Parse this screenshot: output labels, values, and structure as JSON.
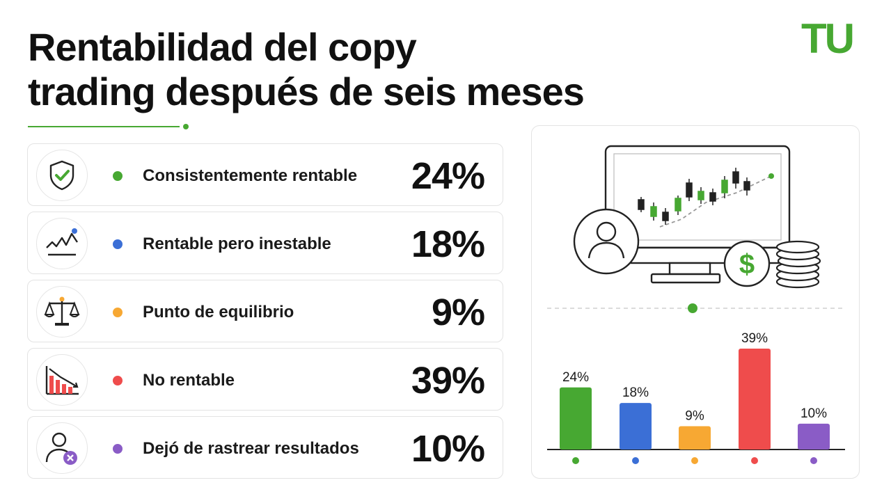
{
  "header": {
    "title_line1": "Rentabilidad del copy",
    "title_line2": "trading después de seis meses",
    "logo_text": "TU",
    "accent_color": "#47a832"
  },
  "rows": [
    {
      "label": "Consistentemente rentable",
      "value": "24%",
      "color": "#47a832",
      "icon": "shield-check-icon"
    },
    {
      "label": "Rentable pero inestable",
      "value": "18%",
      "color": "#3b6fd6",
      "icon": "volatile-line-icon"
    },
    {
      "label": "Punto de equilibrio",
      "value": "9%",
      "color": "#f7a833",
      "icon": "balance-scale-icon"
    },
    {
      "label": "No rentable",
      "value": "39%",
      "color": "#ef4c4c",
      "icon": "declining-bars-icon"
    },
    {
      "label": "Dejó de rastrear resultados",
      "value": "10%",
      "color": "#8a5cc6",
      "icon": "user-remove-icon"
    }
  ],
  "chart_data": {
    "type": "bar",
    "categories": [
      "Consistentemente rentable",
      "Rentable pero inestable",
      "Punto de equilibrio",
      "No rentable",
      "Dejó de rastrear resultados"
    ],
    "values": [
      24,
      18,
      9,
      39,
      10
    ],
    "data_labels": [
      "24%",
      "18%",
      "9%",
      "39%",
      "10%"
    ],
    "colors": [
      "#47a832",
      "#3b6fd6",
      "#f7a833",
      "#ef4c4c",
      "#8a5cc6"
    ],
    "ylim": [
      0,
      39
    ],
    "grid": false,
    "legend": "none",
    "title": "",
    "xlabel": "",
    "ylabel": ""
  },
  "illustration": {
    "icons": [
      "monitor-candlestick-icon",
      "user-avatar-icon",
      "dollar-coin-icon",
      "coin-stack-icon"
    ],
    "dollar_symbol": "$"
  }
}
